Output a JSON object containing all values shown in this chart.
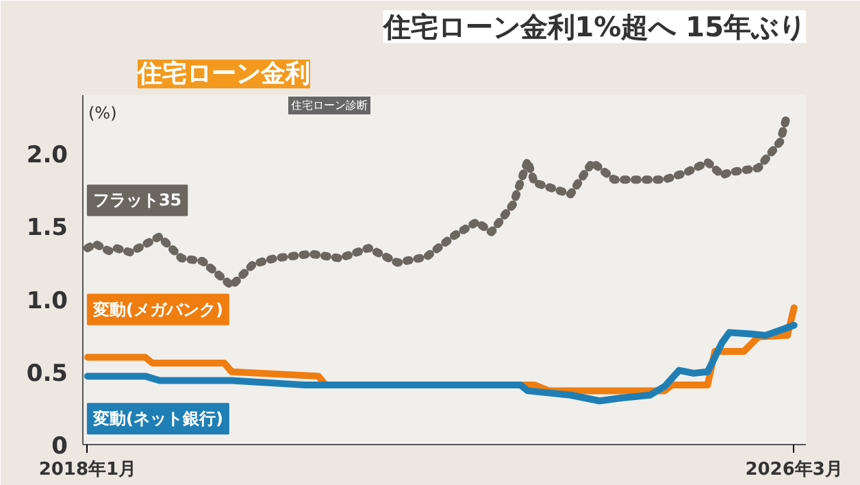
{
  "chart_data": {
    "type": "line",
    "title": "住宅ローン金利1%超へ 15年ぶり",
    "subtitle": "住宅ローン金利",
    "ylabel": "(%)",
    "annotations": [
      "住宅ローン診断"
    ],
    "xlim": [
      "2017-12-12",
      "2026-04-20"
    ],
    "xticks": [
      {
        "value": "2018-01",
        "label": "2018年1月"
      },
      {
        "value": "2026-03",
        "label": "2026年3月"
      }
    ],
    "ylim": [
      0,
      2.4
    ],
    "yticks": [
      0,
      0.5,
      {
        "value": 1.0,
        "label": "1.0"
      },
      1.5,
      {
        "value": 2.0,
        "label": "2.0"
      }
    ],
    "legend": false,
    "grid": false,
    "series": [
      {
        "name": "フラット35",
        "color": "#6b6660",
        "line_style": "dotted",
        "x": [
          "2018-01",
          "2018-02",
          "2018-04",
          "2018-05",
          "2018-07",
          "2018-11",
          "2019-02",
          "2019-05",
          "2019-09",
          "2019-12",
          "2020-03",
          "2020-08",
          "2020-12",
          "2021-04",
          "2021-08",
          "2021-12",
          "2022-04",
          "2022-07",
          "2022-09",
          "2022-12",
          "2023-02",
          "2023-03",
          "2023-08",
          "2023-11",
          "2024-02",
          "2024-09",
          "2024-12",
          "2025-03",
          "2025-05",
          "2025-06",
          "2025-10",
          "2026-01",
          "2026-02"
        ],
        "values": [
          1.35,
          1.38,
          1.33,
          1.35,
          1.32,
          1.43,
          1.28,
          1.26,
          1.09,
          1.24,
          1.28,
          1.31,
          1.28,
          1.35,
          1.25,
          1.29,
          1.44,
          1.53,
          1.46,
          1.65,
          1.95,
          1.8,
          1.72,
          1.94,
          1.82,
          1.82,
          1.87,
          1.94,
          1.85,
          1.87,
          1.9,
          2.08,
          2.27
        ]
      },
      {
        "name": "変動(メガバンク)",
        "color": "#f07d10",
        "line_style": "solid",
        "x": [
          "2018-01",
          "2018-09",
          "2018-10",
          "2019-08",
          "2019-09",
          "2020-09",
          "2020-10",
          "2023-03",
          "2023-05",
          "2024-09",
          "2024-10",
          "2025-03",
          "2025-04",
          "2025-08",
          "2025-10",
          "2026-02",
          "2026-03"
        ],
        "values": [
          0.6,
          0.6,
          0.56,
          0.56,
          0.5,
          0.47,
          0.41,
          0.41,
          0.37,
          0.37,
          0.41,
          0.41,
          0.64,
          0.64,
          0.74,
          0.75,
          0.94
        ]
      },
      {
        "name": "変動(ネット銀行)",
        "color": "#1f7fb5",
        "line_style": "solid",
        "x": [
          "2018-01",
          "2018-09",
          "2018-11",
          "2019-09",
          "2020-07",
          "2023-01",
          "2023-02",
          "2023-08",
          "2023-12",
          "2024-03",
          "2024-07",
          "2024-09",
          "2024-11",
          "2025-01",
          "2025-03",
          "2025-05",
          "2025-06",
          "2025-09",
          "2025-11",
          "2026-03"
        ],
        "values": [
          0.47,
          0.47,
          0.44,
          0.44,
          0.41,
          0.41,
          0.37,
          0.34,
          0.3,
          0.32,
          0.34,
          0.4,
          0.51,
          0.49,
          0.5,
          0.7,
          0.77,
          0.76,
          0.75,
          0.82
        ]
      }
    ]
  }
}
